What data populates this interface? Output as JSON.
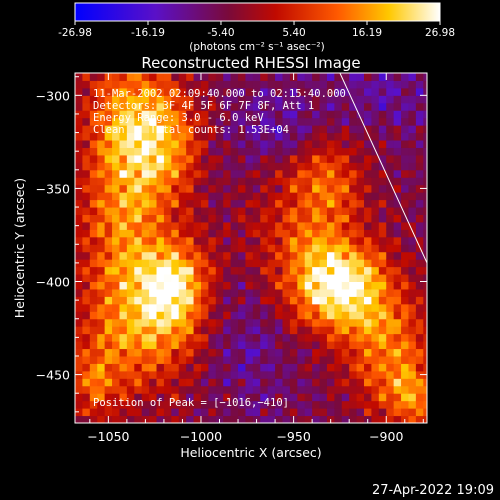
{
  "chart_data": {
    "type": "heatmap",
    "title": "Reconstructed RHESSI Image",
    "xlabel": "Heliocentric X (arcsec)",
    "ylabel": "Heliocentric Y (arcsec)",
    "xlim": [
      -1068,
      -878
    ],
    "ylim": [
      -476,
      -288
    ],
    "x_ticks": [
      -1050,
      -1000,
      -950,
      -900
    ],
    "x_tick_labels": [
      "−1050",
      "−1000",
      "−950",
      "−900"
    ],
    "y_ticks": [
      -300,
      -350,
      -400,
      -450
    ],
    "y_tick_labels": [
      "−300",
      "−350",
      "−400",
      "−450"
    ],
    "colorbar": {
      "min": -26.98,
      "max": 26.98,
      "ticks": [
        -26.98,
        -16.19,
        -5.4,
        5.4,
        16.19,
        26.98
      ],
      "tick_labels": [
        "-26.98",
        "-16.19",
        "-5.40",
        "5.40",
        "16.19",
        "26.98"
      ],
      "unit_label": "(photons cm⁻² s⁻¹ asec⁻²)"
    },
    "annotations": [
      "11-Mar-2002 02:09:40.000 to 02:15:40.000",
      "Detectors: 3F 4F 5F 6F 7F 8F, Att 1",
      "Energy Range: 3.0 - 6.0 keV",
      "Clean    Total counts: 1.53E+04"
    ],
    "peak_label": "Position of Peak = [−1016,−410]",
    "peak": [
      -1016,
      -410
    ],
    "sources": [
      {
        "x": -1040,
        "y": -315,
        "sx": 18,
        "sy": 28,
        "amp": 20
      },
      {
        "x": -1020,
        "y": -330,
        "sx": 14,
        "sy": 22,
        "amp": 14
      },
      {
        "x": -1045,
        "y": -375,
        "sx": 16,
        "sy": 32,
        "amp": 16
      },
      {
        "x": -1016,
        "y": -405,
        "sx": 14,
        "sy": 18,
        "amp": 25
      },
      {
        "x": -1035,
        "y": -430,
        "sx": 22,
        "sy": 25,
        "amp": 16
      },
      {
        "x": -1060,
        "y": -455,
        "sx": 10,
        "sy": 15,
        "amp": 12
      },
      {
        "x": -945,
        "y": -385,
        "sx": 22,
        "sy": 28,
        "amp": 14
      },
      {
        "x": -925,
        "y": -405,
        "sx": 18,
        "sy": 16,
        "amp": 26
      },
      {
        "x": -935,
        "y": -345,
        "sx": 14,
        "sy": 18,
        "amp": 12
      },
      {
        "x": -900,
        "y": -440,
        "sx": 16,
        "sy": 22,
        "amp": 18
      },
      {
        "x": -885,
        "y": -465,
        "sx": 12,
        "sy": 12,
        "amp": 14
      },
      {
        "x": -960,
        "y": -320,
        "sx": 20,
        "sy": 14,
        "amp": -8
      },
      {
        "x": -975,
        "y": -430,
        "sx": 18,
        "sy": 30,
        "amp": -7
      },
      {
        "x": -905,
        "y": -300,
        "sx": 22,
        "sy": 18,
        "amp": -6
      }
    ],
    "limb_line": {
      "x": [
        -925,
        -878
      ],
      "y": [
        -288,
        -390
      ]
    }
  },
  "footer": {
    "datestamp": "27-Apr-2022 19:09"
  },
  "colors": {
    "background": "#000000",
    "text": "#ffffff",
    "colormap": [
      "#0000ff",
      "#6a0db0",
      "#8b0a0a",
      "#ff2000",
      "#ff8a00",
      "#ffd400",
      "#ffffff"
    ]
  }
}
